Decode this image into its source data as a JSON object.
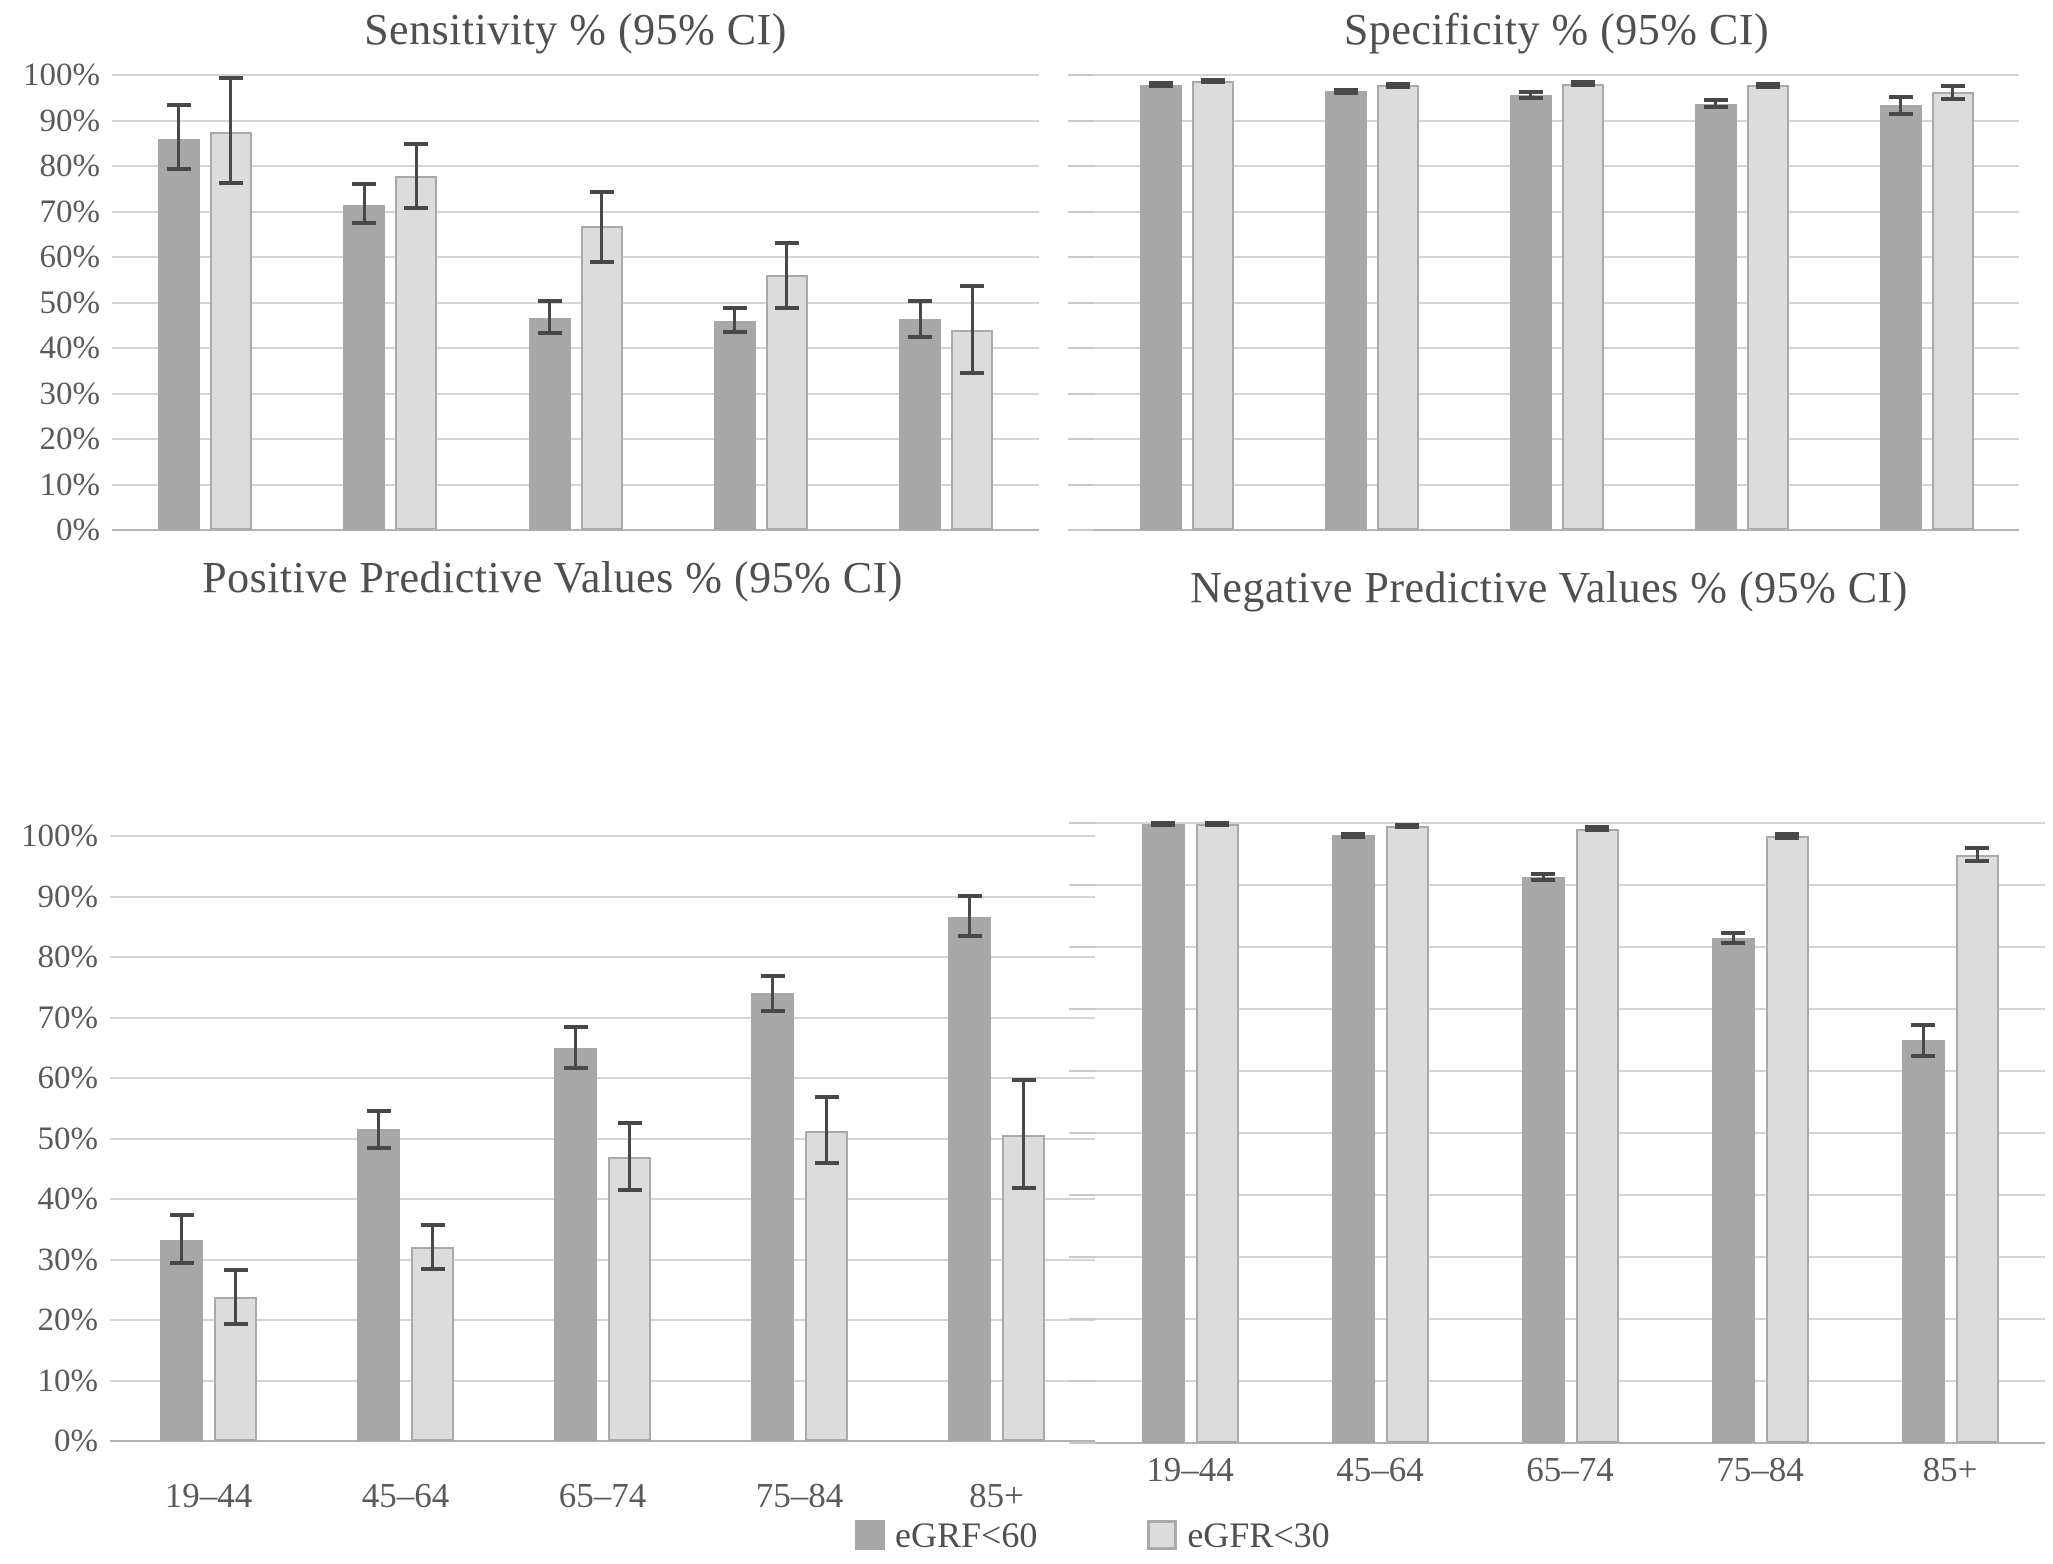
{
  "page": {
    "background": "#ffffff"
  },
  "colors": {
    "series_dark": "#a7a7a7",
    "series_light": "#dcdcdc",
    "series_light_border": "#a9a9a9",
    "error_bar": "#484848",
    "gridline": "#d4d4d4",
    "baseline": "#b3b3b3",
    "text": "#5a5a5a",
    "title": "#4f4f4f"
  },
  "legend": {
    "position": "bottom-center",
    "items": [
      {
        "label": "eGRF<60",
        "swatch": "dark-gray-square",
        "color": "#a7a7a7"
      },
      {
        "label": "eGFR<30",
        "swatch": "light-gray-square",
        "color": "#dcdcdc"
      }
    ]
  },
  "y_axis": {
    "min": 0,
    "max": 100,
    "step": 10,
    "tick_labels": [
      "0%",
      "10%",
      "20%",
      "30%",
      "40%",
      "50%",
      "60%",
      "70%",
      "80%",
      "90%",
      "100%"
    ]
  },
  "categories": [
    "19–44",
    "45–64",
    "65–74",
    "75–84",
    "85+"
  ],
  "chart_data": [
    {
      "id": "sensitivity",
      "type": "bar",
      "title": "Sensitivity % (95% CI)",
      "categories": [
        "19–44",
        "45–64",
        "65–74",
        "75–84",
        "85+"
      ],
      "ylim": [
        0,
        100
      ],
      "grid": true,
      "show_y_labels": true,
      "show_x_labels": false,
      "show_tick_stubs": false,
      "series": [
        {
          "name": "eGRF<60",
          "values": [
            86.0,
            71.5,
            46.6,
            46.0,
            46.3
          ],
          "ci_low": [
            79.3,
            67.5,
            43.4,
            43.5,
            42.5
          ],
          "ci_high": [
            93.5,
            76.0,
            50.3,
            48.9,
            50.4
          ]
        },
        {
          "name": "eGFR<30",
          "values": [
            87.4,
            77.8,
            66.8,
            56.1,
            44.0
          ],
          "ci_low": [
            76.2,
            70.7,
            58.9,
            48.8,
            34.6
          ],
          "ci_high": [
            99.3,
            84.8,
            74.3,
            63.0,
            53.6
          ]
        }
      ]
    },
    {
      "id": "specificity",
      "type": "bar",
      "title": "Specificity % (95% CI)",
      "categories": [
        "19–44",
        "45–64",
        "65–74",
        "75–84",
        "85+"
      ],
      "ylim": [
        0,
        100
      ],
      "grid": true,
      "show_y_labels": false,
      "show_x_labels": false,
      "show_tick_stubs": true,
      "series": [
        {
          "name": "eGRF<60",
          "values": [
            97.9,
            96.4,
            95.6,
            93.7,
            93.3
          ],
          "ci_low": [
            97.5,
            96.0,
            95.0,
            93.0,
            91.5
          ],
          "ci_high": [
            98.3,
            96.8,
            96.2,
            94.4,
            95.1
          ]
        },
        {
          "name": "eGFR<30",
          "values": [
            98.7,
            97.7,
            98.1,
            97.7,
            96.2
          ],
          "ci_low": [
            98.4,
            97.3,
            97.8,
            97.3,
            94.8
          ],
          "ci_high": [
            99.0,
            98.1,
            98.4,
            98.1,
            97.5
          ]
        }
      ]
    },
    {
      "id": "ppv",
      "type": "bar",
      "title": "Positive Predictive Values % (95% CI)",
      "categories": [
        "19–44",
        "45–64",
        "65–74",
        "75–84",
        "85+"
      ],
      "ylim": [
        0,
        100
      ],
      "grid": true,
      "show_y_labels": true,
      "show_x_labels": true,
      "show_tick_stubs": false,
      "series": [
        {
          "name": "eGRF<60",
          "values": [
            33.3,
            51.5,
            65.0,
            74.0,
            86.6
          ],
          "ci_low": [
            29.4,
            48.4,
            61.6,
            71.1,
            83.4
          ],
          "ci_high": [
            37.3,
            54.6,
            68.4,
            76.9,
            90.1
          ]
        },
        {
          "name": "eGFR<30",
          "values": [
            23.8,
            32.0,
            47.0,
            51.3,
            50.6
          ],
          "ci_low": [
            19.4,
            28.4,
            41.5,
            45.9,
            41.9
          ],
          "ci_high": [
            28.2,
            35.7,
            52.5,
            56.9,
            59.6
          ]
        }
      ]
    },
    {
      "id": "npv",
      "type": "bar",
      "title": "Negative Predictive Values % (95% CI)",
      "categories": [
        "19–44",
        "45–64",
        "65–74",
        "75–84",
        "85+"
      ],
      "ylim": [
        0,
        100
      ],
      "grid": true,
      "show_y_labels": false,
      "show_x_labels": true,
      "show_tick_stubs": true,
      "series": [
        {
          "name": "eGRF<60",
          "values": [
            99.8,
            98.0,
            91.3,
            81.5,
            65.0
          ],
          "ci_low": [
            99.6,
            97.7,
            90.8,
            80.7,
            62.5
          ],
          "ci_high": [
            100.0,
            98.3,
            91.8,
            82.3,
            67.5
          ]
        },
        {
          "name": "eGFR<30",
          "values": [
            99.8,
            99.5,
            99.1,
            97.9,
            94.9
          ],
          "ci_low": [
            99.6,
            99.3,
            98.9,
            97.6,
            93.9
          ],
          "ci_high": [
            100.0,
            99.7,
            99.3,
            98.2,
            95.9
          ]
        }
      ]
    }
  ]
}
